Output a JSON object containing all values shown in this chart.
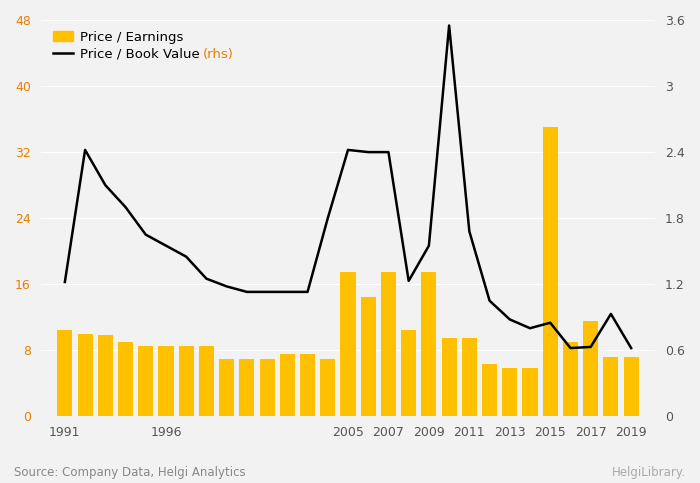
{
  "bar_color": "#FFC000",
  "line_color": "#000000",
  "background_color": "#F2F2F2",
  "grid_color": "#FFFFFF",
  "left_ylim": [
    0,
    48
  ],
  "right_ylim": [
    0,
    3.6
  ],
  "left_yticks": [
    0,
    8,
    16,
    24,
    32,
    40,
    48
  ],
  "right_yticks": [
    0,
    0.6,
    1.2,
    1.8,
    2.4,
    3.0,
    3.6
  ],
  "xtick_positions": [
    1991,
    1996,
    2005,
    2007,
    2009,
    2011,
    2013,
    2015,
    2017,
    2019
  ],
  "legend_pe": "Price / Earnings",
  "legend_pb": "Price / Book Value",
  "legend_pb_rhs": "(rhs)",
  "source_text": "Source: Company Data, Helgi Analytics",
  "pe_years": [
    1991,
    1992,
    1993,
    1994,
    1995,
    1996,
    1997,
    1998,
    1999,
    2000,
    2001,
    2002,
    2003,
    2004,
    2005,
    2006,
    2007,
    2008,
    2009,
    2010,
    2011,
    2012,
    2013,
    2014,
    2015,
    2016,
    2017,
    2018,
    2019
  ],
  "pe_values": [
    10.5,
    10.0,
    9.8,
    9.0,
    8.5,
    8.5,
    8.5,
    8.5,
    7.0,
    7.0,
    7.0,
    7.5,
    7.5,
    7.0,
    17.5,
    14.5,
    17.5,
    10.5,
    17.5,
    9.5,
    9.5,
    6.3,
    5.8,
    5.8,
    35.0,
    9.0,
    11.5,
    7.2,
    7.2
  ],
  "pb_years": [
    1991,
    1992,
    1993,
    1994,
    1995,
    1996,
    1997,
    1998,
    1999,
    2000,
    2001,
    2002,
    2003,
    2004,
    2005,
    2006,
    2007,
    2008,
    2009,
    2010,
    2011,
    2012,
    2013,
    2014,
    2015,
    2016,
    2017,
    2018,
    2019
  ],
  "pb_values": [
    1.22,
    2.42,
    2.1,
    1.9,
    1.65,
    1.55,
    1.45,
    1.25,
    1.18,
    1.13,
    1.13,
    1.13,
    1.13,
    1.8,
    2.42,
    2.4,
    2.4,
    1.23,
    1.55,
    3.55,
    1.68,
    1.05,
    0.88,
    0.8,
    0.85,
    0.62,
    0.63,
    0.93,
    0.62
  ]
}
